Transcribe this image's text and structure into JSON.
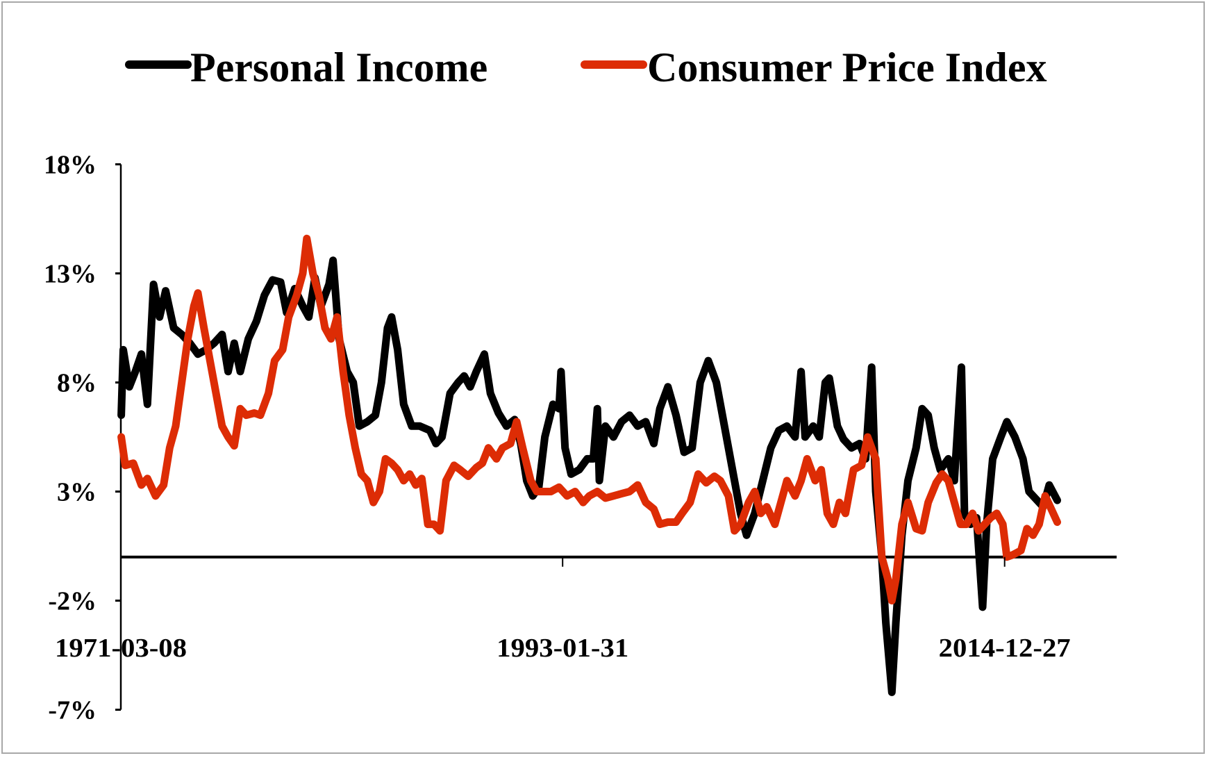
{
  "chart_data": {
    "type": "line",
    "title": "",
    "xlabel": "",
    "ylabel": "",
    "ylim": [
      -7,
      18
    ],
    "xlim_years": [
      1971.18,
      2019.6
    ],
    "grid": false,
    "legend_position": "top",
    "y_ticks": [
      18,
      13,
      8,
      3,
      -2,
      -7
    ],
    "y_tick_labels": [
      "18%",
      "13%",
      "8%",
      "3%",
      "-2%",
      "-7%"
    ],
    "x_ticks": [
      {
        "year": 1971.18,
        "label": "1971-03-08"
      },
      {
        "year": 1993.08,
        "label": "1993-01-31"
      },
      {
        "year": 2014.99,
        "label": "2014-12-27"
      }
    ],
    "series": [
      {
        "name": "Personal Income",
        "color": "#000000",
        "points": [
          [
            1971.2,
            6.5
          ],
          [
            1971.3,
            9.5
          ],
          [
            1971.6,
            7.8
          ],
          [
            1971.9,
            8.5
          ],
          [
            1972.2,
            9.3
          ],
          [
            1972.5,
            7
          ],
          [
            1972.8,
            12.5
          ],
          [
            1973.1,
            11
          ],
          [
            1973.4,
            12.2
          ],
          [
            1973.8,
            10.5
          ],
          [
            1974.2,
            10.2
          ],
          [
            1974.6,
            9.8
          ],
          [
            1975.0,
            9.3
          ],
          [
            1975.4,
            9.5
          ],
          [
            1975.8,
            9.8
          ],
          [
            1976.2,
            10.2
          ],
          [
            1976.5,
            8.5
          ],
          [
            1976.8,
            9.8
          ],
          [
            1977.1,
            8.5
          ],
          [
            1977.5,
            10
          ],
          [
            1977.9,
            10.8
          ],
          [
            1978.3,
            12
          ],
          [
            1978.7,
            12.7
          ],
          [
            1979.1,
            12.6
          ],
          [
            1979.4,
            11.2
          ],
          [
            1979.8,
            12.3
          ],
          [
            1980.2,
            11.5
          ],
          [
            1980.5,
            11
          ],
          [
            1980.8,
            12.8
          ],
          [
            1981.1,
            11.5
          ],
          [
            1981.5,
            12.5
          ],
          [
            1981.7,
            13.6
          ],
          [
            1982.0,
            10
          ],
          [
            1982.4,
            8.5
          ],
          [
            1982.7,
            8
          ],
          [
            1983.0,
            6
          ],
          [
            1983.4,
            6.2
          ],
          [
            1983.8,
            6.5
          ],
          [
            1984.1,
            8
          ],
          [
            1984.4,
            10.5
          ],
          [
            1984.6,
            11
          ],
          [
            1984.9,
            9.5
          ],
          [
            1985.2,
            7
          ],
          [
            1985.6,
            6
          ],
          [
            1986.0,
            6
          ],
          [
            1986.5,
            5.8
          ],
          [
            1986.8,
            5.2
          ],
          [
            1987.1,
            5.5
          ],
          [
            1987.5,
            7.5
          ],
          [
            1987.9,
            8
          ],
          [
            1988.2,
            8.3
          ],
          [
            1988.5,
            7.8
          ],
          [
            1988.8,
            8.5
          ],
          [
            1989.2,
            9.3
          ],
          [
            1989.5,
            7.5
          ],
          [
            1989.9,
            6.6
          ],
          [
            1990.3,
            6
          ],
          [
            1990.7,
            6.3
          ],
          [
            1991.0,
            5.2
          ],
          [
            1991.3,
            3.5
          ],
          [
            1991.6,
            2.8
          ],
          [
            1991.9,
            3.2
          ],
          [
            1992.2,
            5.5
          ],
          [
            1992.6,
            7
          ],
          [
            1992.9,
            6.8
          ],
          [
            1993.0,
            8.5
          ],
          [
            1993.2,
            5
          ],
          [
            1993.5,
            3.8
          ],
          [
            1993.9,
            4
          ],
          [
            1994.3,
            4.5
          ],
          [
            1994.6,
            4.5
          ],
          [
            1994.8,
            6.8
          ],
          [
            1994.9,
            3.5
          ],
          [
            1995.2,
            6
          ],
          [
            1995.6,
            5.5
          ],
          [
            1996.0,
            6.2
          ],
          [
            1996.4,
            6.5
          ],
          [
            1996.8,
            6
          ],
          [
            1997.2,
            6.2
          ],
          [
            1997.6,
            5.2
          ],
          [
            1997.9,
            6.8
          ],
          [
            1998.3,
            7.8
          ],
          [
            1998.7,
            6.5
          ],
          [
            1999.1,
            4.8
          ],
          [
            1999.5,
            5
          ],
          [
            1999.9,
            8
          ],
          [
            2000.3,
            9
          ],
          [
            2000.7,
            8
          ],
          [
            2001.1,
            6
          ],
          [
            2001.5,
            4
          ],
          [
            2001.9,
            2
          ],
          [
            2002.2,
            1
          ],
          [
            2002.6,
            2
          ],
          [
            2003.0,
            3.5
          ],
          [
            2003.4,
            5
          ],
          [
            2003.8,
            5.8
          ],
          [
            2004.2,
            6
          ],
          [
            2004.6,
            5.5
          ],
          [
            2004.9,
            8.5
          ],
          [
            2005.1,
            5.5
          ],
          [
            2005.5,
            6
          ],
          [
            2005.8,
            5.5
          ],
          [
            2006.1,
            8
          ],
          [
            2006.3,
            8.2
          ],
          [
            2006.7,
            6
          ],
          [
            2007.0,
            5.4
          ],
          [
            2007.4,
            5
          ],
          [
            2007.8,
            5.2
          ],
          [
            2008.1,
            4.5
          ],
          [
            2008.4,
            8.7
          ],
          [
            2008.6,
            3
          ],
          [
            2008.9,
            0
          ],
          [
            2009.1,
            -3
          ],
          [
            2009.4,
            -6.2
          ],
          [
            2009.6,
            -3
          ],
          [
            2009.9,
            1
          ],
          [
            2010.2,
            3.5
          ],
          [
            2010.6,
            5
          ],
          [
            2010.9,
            6.8
          ],
          [
            2011.2,
            6.5
          ],
          [
            2011.5,
            5
          ],
          [
            2011.8,
            4
          ],
          [
            2012.2,
            4.5
          ],
          [
            2012.5,
            3.5
          ],
          [
            2012.85,
            8.7
          ],
          [
            2013.0,
            2
          ],
          [
            2013.3,
            1.5
          ],
          [
            2013.6,
            1.8
          ],
          [
            2013.9,
            -2.3
          ],
          [
            2014.1,
            1.5
          ],
          [
            2014.4,
            4.5
          ],
          [
            2014.8,
            5.5
          ],
          [
            2015.1,
            6.2
          ],
          [
            2015.5,
            5.5
          ],
          [
            2015.9,
            4.5
          ],
          [
            2016.2,
            3
          ],
          [
            2016.6,
            2.6
          ],
          [
            2016.9,
            2.3
          ],
          [
            2017.2,
            3.3
          ],
          [
            2017.6,
            2.6
          ]
        ]
      },
      {
        "name": "Consumer Price Index",
        "color": "#dd2c05",
        "points": [
          [
            1971.2,
            5.5
          ],
          [
            1971.4,
            4.2
          ],
          [
            1971.8,
            4.3
          ],
          [
            1972.2,
            3.3
          ],
          [
            1972.5,
            3.6
          ],
          [
            1972.9,
            2.8
          ],
          [
            1973.3,
            3.3
          ],
          [
            1973.6,
            5
          ],
          [
            1973.9,
            6
          ],
          [
            1974.2,
            8
          ],
          [
            1974.5,
            10
          ],
          [
            1974.8,
            11.5
          ],
          [
            1975.0,
            12.1
          ],
          [
            1975.3,
            10.5
          ],
          [
            1975.6,
            9
          ],
          [
            1975.9,
            7.5
          ],
          [
            1976.2,
            6
          ],
          [
            1976.5,
            5.5
          ],
          [
            1976.8,
            5.1
          ],
          [
            1977.1,
            6.8
          ],
          [
            1977.4,
            6.5
          ],
          [
            1977.8,
            6.6
          ],
          [
            1978.1,
            6.5
          ],
          [
            1978.5,
            7.5
          ],
          [
            1978.8,
            9
          ],
          [
            1979.2,
            9.5
          ],
          [
            1979.5,
            11
          ],
          [
            1979.9,
            12
          ],
          [
            1980.2,
            13
          ],
          [
            1980.4,
            14.6
          ],
          [
            1980.7,
            13
          ],
          [
            1981.0,
            12
          ],
          [
            1981.3,
            10.5
          ],
          [
            1981.6,
            10
          ],
          [
            1981.9,
            11
          ],
          [
            1982.2,
            8.5
          ],
          [
            1982.5,
            6.5
          ],
          [
            1982.8,
            5
          ],
          [
            1983.1,
            3.8
          ],
          [
            1983.4,
            3.5
          ],
          [
            1983.7,
            2.5
          ],
          [
            1984.0,
            3
          ],
          [
            1984.3,
            4.5
          ],
          [
            1984.6,
            4.3
          ],
          [
            1984.9,
            4
          ],
          [
            1985.2,
            3.5
          ],
          [
            1985.5,
            3.8
          ],
          [
            1985.8,
            3.3
          ],
          [
            1986.1,
            3.6
          ],
          [
            1986.4,
            1.5
          ],
          [
            1986.7,
            1.5
          ],
          [
            1987.0,
            1.2
          ],
          [
            1987.3,
            3.5
          ],
          [
            1987.7,
            4.2
          ],
          [
            1988.0,
            4
          ],
          [
            1988.4,
            3.7
          ],
          [
            1988.8,
            4.1
          ],
          [
            1989.1,
            4.3
          ],
          [
            1989.4,
            5
          ],
          [
            1989.8,
            4.5
          ],
          [
            1990.1,
            5
          ],
          [
            1990.5,
            5.2
          ],
          [
            1990.8,
            6.2
          ],
          [
            1991.1,
            5
          ],
          [
            1991.5,
            3.5
          ],
          [
            1991.8,
            3
          ],
          [
            1992.1,
            3
          ],
          [
            1992.5,
            3
          ],
          [
            1992.9,
            3.2
          ],
          [
            1993.3,
            2.8
          ],
          [
            1993.7,
            3
          ],
          [
            1994.1,
            2.5
          ],
          [
            1994.4,
            2.8
          ],
          [
            1994.8,
            3
          ],
          [
            1995.2,
            2.7
          ],
          [
            1995.6,
            2.8
          ],
          [
            1996.0,
            2.9
          ],
          [
            1996.4,
            3
          ],
          [
            1996.8,
            3.3
          ],
          [
            1997.2,
            2.5
          ],
          [
            1997.6,
            2.2
          ],
          [
            1997.9,
            1.5
          ],
          [
            1998.3,
            1.6
          ],
          [
            1998.7,
            1.6
          ],
          [
            1999.0,
            2
          ],
          [
            1999.4,
            2.5
          ],
          [
            1999.8,
            3.8
          ],
          [
            2000.2,
            3.4
          ],
          [
            2000.6,
            3.7
          ],
          [
            2000.9,
            3.5
          ],
          [
            2001.3,
            2.8
          ],
          [
            2001.6,
            1.2
          ],
          [
            2001.9,
            1.5
          ],
          [
            2002.3,
            2.5
          ],
          [
            2002.6,
            3
          ],
          [
            2002.9,
            2
          ],
          [
            2003.2,
            2.3
          ],
          [
            2003.6,
            1.5
          ],
          [
            2003.9,
            2.5
          ],
          [
            2004.2,
            3.5
          ],
          [
            2004.6,
            2.8
          ],
          [
            2004.9,
            3.5
          ],
          [
            2005.2,
            4.5
          ],
          [
            2005.6,
            3.5
          ],
          [
            2005.9,
            4
          ],
          [
            2006.2,
            2
          ],
          [
            2006.5,
            1.5
          ],
          [
            2006.8,
            2.5
          ],
          [
            2007.1,
            2
          ],
          [
            2007.5,
            4
          ],
          [
            2007.9,
            4.2
          ],
          [
            2008.2,
            5.5
          ],
          [
            2008.6,
            4.5
          ],
          [
            2008.9,
            0
          ],
          [
            2009.2,
            -1
          ],
          [
            2009.4,
            -2
          ],
          [
            2009.6,
            -1
          ],
          [
            2009.9,
            1.5
          ],
          [
            2010.2,
            2.5
          ],
          [
            2010.6,
            1.3
          ],
          [
            2010.9,
            1.2
          ],
          [
            2011.2,
            2.5
          ],
          [
            2011.6,
            3.4
          ],
          [
            2011.9,
            3.8
          ],
          [
            2012.2,
            3.5
          ],
          [
            2012.5,
            2.5
          ],
          [
            2012.8,
            1.5
          ],
          [
            2013.1,
            1.5
          ],
          [
            2013.4,
            2
          ],
          [
            2013.7,
            1.2
          ],
          [
            2014.0,
            1.5
          ],
          [
            2014.3,
            1.8
          ],
          [
            2014.6,
            2
          ],
          [
            2014.9,
            1.5
          ],
          [
            2015.1,
            0
          ],
          [
            2015.4,
            0.1
          ],
          [
            2015.8,
            0.3
          ],
          [
            2016.1,
            1.3
          ],
          [
            2016.4,
            1
          ],
          [
            2016.7,
            1.5
          ],
          [
            2017.0,
            2.8
          ],
          [
            2017.3,
            2.2
          ],
          [
            2017.6,
            1.6
          ]
        ]
      }
    ]
  }
}
